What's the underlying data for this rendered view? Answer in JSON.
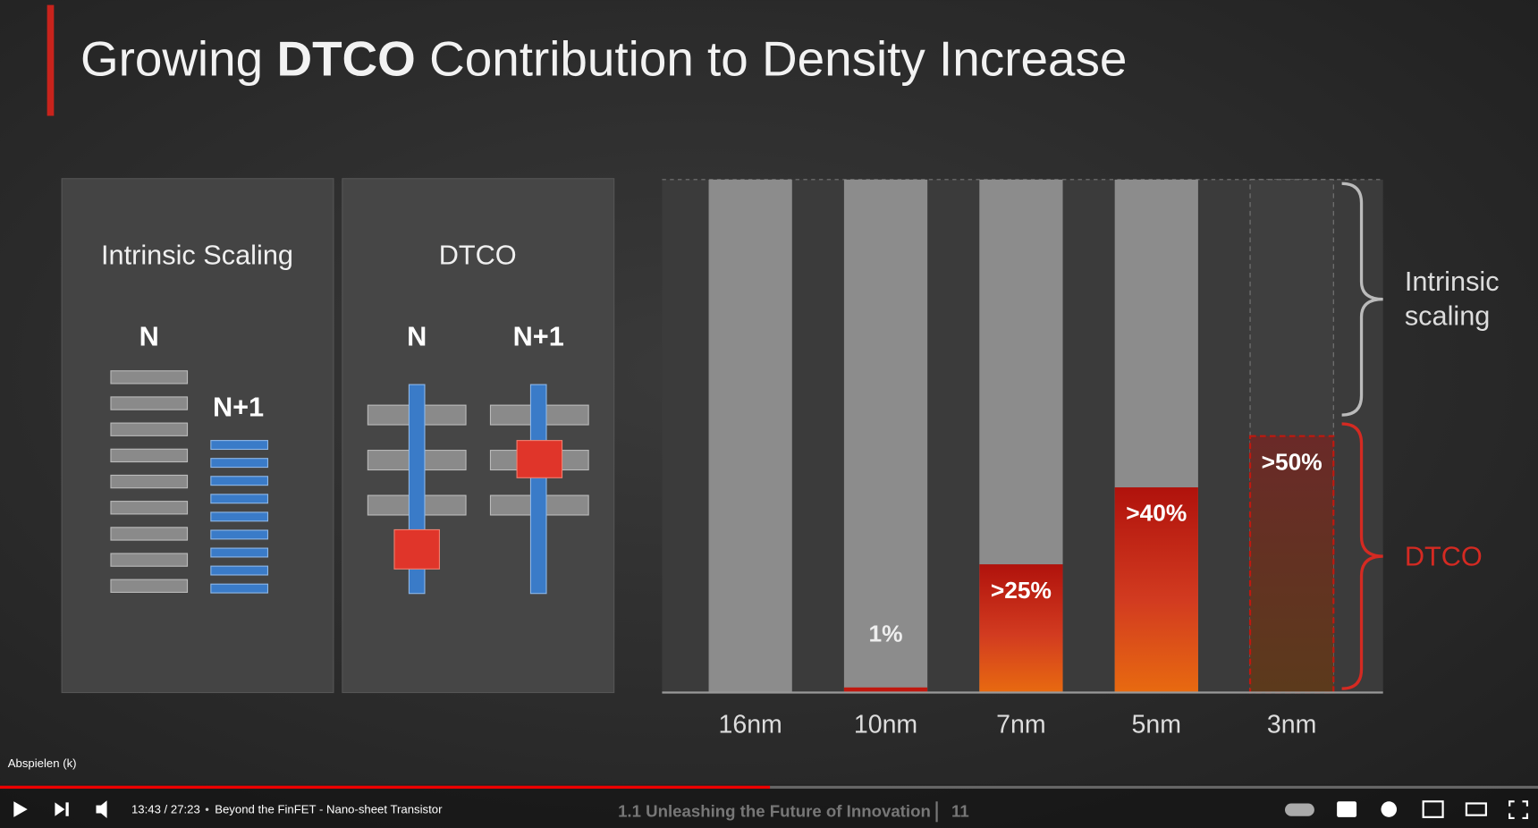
{
  "slide": {
    "title": [
      "Growing",
      "DTCO",
      "Contribution to Density Increase"
    ],
    "panels": [
      {
        "title": "Intrinsic Scaling",
        "labels": [
          "N",
          "N+1"
        ]
      },
      {
        "title": "DTCO",
        "labels": [
          "N",
          "N+1"
        ]
      }
    ],
    "footer": {
      "text": "1.1 Unleashing the Future of Innovation",
      "page": "11"
    }
  },
  "chart_data": {
    "type": "bar",
    "categories": [
      "16nm",
      "10nm",
      "7nm",
      "5nm",
      "3nm"
    ],
    "values": [
      0,
      1,
      25,
      40,
      50
    ],
    "value_labels": [
      null,
      "1%",
      ">25%",
      ">40%",
      ">50%"
    ],
    "ylim": [
      0,
      100
    ],
    "color": "#c0180f",
    "annotations": {
      "intrinsic": [
        "Intrinsic",
        "scaling"
      ],
      "dtco": "DTCO"
    }
  },
  "player": {
    "tooltip": "Abspielen (k)",
    "time": "13:43 / 27:23",
    "separator": "•",
    "chapter": "Beyond the FinFET - Nano-sheet Transistor"
  }
}
